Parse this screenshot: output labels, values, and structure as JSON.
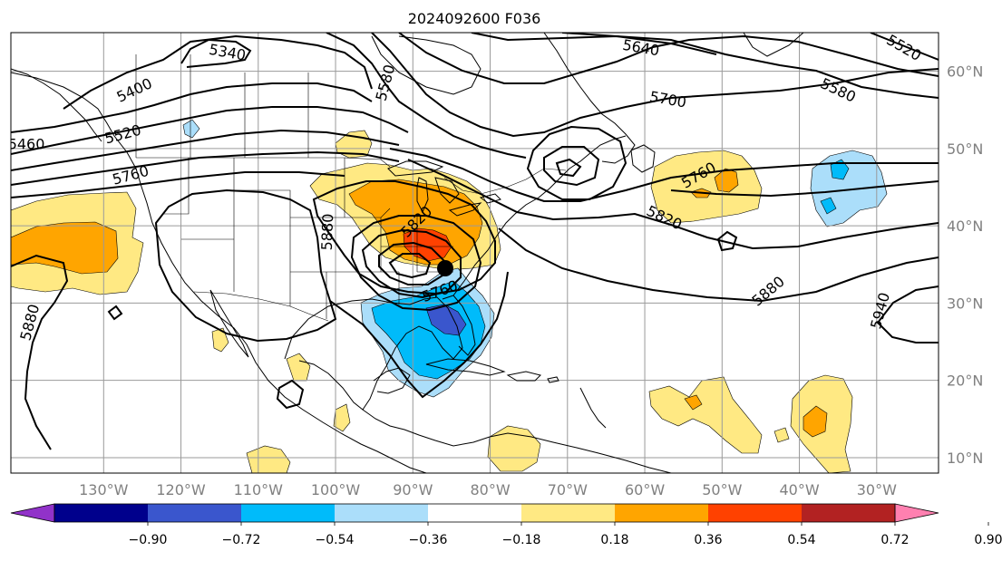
{
  "title": "2024092600 F036",
  "map": {
    "lon_range": [
      -142,
      -22
    ],
    "lat_range": [
      8,
      65
    ],
    "lon_ticks": [
      {
        "value": -130,
        "label": "130°W"
      },
      {
        "value": -120,
        "label": "120°W"
      },
      {
        "value": -110,
        "label": "110°W"
      },
      {
        "value": -100,
        "label": "100°W"
      },
      {
        "value": -90,
        "label": "90°W"
      },
      {
        "value": -80,
        "label": "80°W"
      },
      {
        "value": -70,
        "label": "70°W"
      },
      {
        "value": -60,
        "label": "60°W"
      },
      {
        "value": -50,
        "label": "50°W"
      },
      {
        "value": -40,
        "label": "40°W"
      },
      {
        "value": -30,
        "label": "30°W"
      }
    ],
    "lat_ticks": [
      {
        "value": 60,
        "label": "60°N"
      },
      {
        "value": 50,
        "label": "50°N"
      },
      {
        "value": 40,
        "label": "40°N"
      },
      {
        "value": 30,
        "label": "30°N"
      },
      {
        "value": 20,
        "label": "20°N"
      },
      {
        "value": 10,
        "label": "10°N"
      }
    ],
    "grid": true,
    "contour_labels": [
      {
        "text": "5340",
        "lon": -114,
        "lat": 62.4,
        "rot": 10
      },
      {
        "text": "5400",
        "lon": -126,
        "lat": 57.5,
        "rot": -25
      },
      {
        "text": "5460",
        "lon": -140,
        "lat": 50.5,
        "rot": 0
      },
      {
        "text": "5520",
        "lon": -127.5,
        "lat": 51.8,
        "rot": -15
      },
      {
        "text": "5760",
        "lon": -126.5,
        "lat": 46.5,
        "rot": -15
      },
      {
        "text": "5580",
        "lon": -93.5,
        "lat": 58.5,
        "rot": -75
      },
      {
        "text": "5640",
        "lon": -60.5,
        "lat": 63,
        "rot": 10
      },
      {
        "text": "5520",
        "lon": -26.5,
        "lat": 63,
        "rot": 30
      },
      {
        "text": "5700",
        "lon": -57,
        "lat": 56.3,
        "rot": 10
      },
      {
        "text": "5580",
        "lon": -35,
        "lat": 57.5,
        "rot": 25
      },
      {
        "text": "5880",
        "lon": -101,
        "lat": 39.2,
        "rot": -88
      },
      {
        "text": "5820",
        "lon": -89.5,
        "lat": 40.5,
        "rot": -45
      },
      {
        "text": "5760",
        "lon": -53,
        "lat": 46.5,
        "rot": -30
      },
      {
        "text": "5820",
        "lon": -57.5,
        "lat": 41,
        "rot": 25
      },
      {
        "text": "5880",
        "lon": -44,
        "lat": 31.5,
        "rot": -40
      },
      {
        "text": "5940",
        "lon": -29.5,
        "lat": 29,
        "rot": -75
      },
      {
        "text": "5880",
        "lon": -139.5,
        "lat": 27.5,
        "rot": -75
      },
      {
        "text": "5760",
        "lon": -86.5,
        "lat": 31.5,
        "rot": -20
      }
    ],
    "shading_colors": {
      "neg_090": "#9132c9",
      "neg_072": "#00008c",
      "neg_054": "#3a56cd",
      "neg_036": "#00bbfa",
      "neg_018": "#abdefa",
      "pos_018": "#ffe983",
      "pos_036": "#ffa500",
      "pos_054": "#ff4100",
      "pos_072": "#b22222",
      "pos_090": "#ff80b0"
    }
  },
  "colorbar": {
    "colors": [
      "#9132c9",
      "#00008c",
      "#3a56cd",
      "#00bbfa",
      "#abdefa",
      "#ffffff",
      "#ffe983",
      "#ffa500",
      "#ff4100",
      "#b22222",
      "#ff80b0"
    ],
    "tick_labels": [
      "−0.90",
      "−0.72",
      "−0.54",
      "−0.36",
      "−0.18",
      "0.18",
      "0.36",
      "0.54",
      "0.72",
      "0.90"
    ],
    "extend": "both"
  }
}
